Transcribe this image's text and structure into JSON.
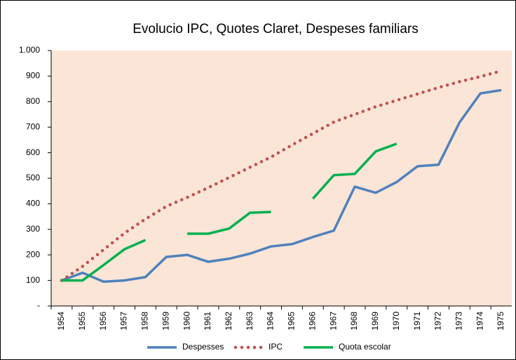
{
  "chart_data": {
    "type": "line",
    "title": "Evolucio IPC, Quotes Claret, Despeses familiars",
    "categories": [
      "1954",
      "1955",
      "1956",
      "1957",
      "1958",
      "1959",
      "1960",
      "1961",
      "1962",
      "1963",
      "1964",
      "1965",
      "1966",
      "1967",
      "1968",
      "1969",
      "1970",
      "1971",
      "1972",
      "1973",
      "1974",
      "1975"
    ],
    "series": [
      {
        "name": "Despesses",
        "color": "#4f81bd",
        "style": "solid",
        "values": [
          100,
          130,
          95,
          100,
          113,
          192,
          200,
          173,
          185,
          205,
          233,
          242,
          270,
          295,
          467,
          443,
          485,
          547,
          553,
          718,
          832,
          845
        ]
      },
      {
        "name": "IPC",
        "color": "#c0504d",
        "style": "dotted",
        "values": [
          100,
          155,
          220,
          285,
          340,
          390,
          425,
          463,
          503,
          543,
          583,
          630,
          675,
          720,
          750,
          780,
          805,
          830,
          855,
          878,
          898,
          920
        ]
      },
      {
        "name": "Quota escolar",
        "color": "#00b050",
        "style": "solid",
        "values": [
          100,
          100,
          160,
          222,
          258,
          null,
          283,
          283,
          303,
          365,
          368,
          null,
          420,
          512,
          517,
          605,
          635,
          null,
          null,
          null,
          null,
          null
        ]
      }
    ],
    "ylim": [
      0,
      1000
    ],
    "yticks": [
      {
        "value": 0,
        "label": "-"
      },
      100,
      200,
      300,
      400,
      500,
      600,
      700,
      800,
      900,
      {
        "value": 1000,
        "label": "1.000"
      }
    ],
    "plot_background": "#fbe5d6",
    "legend": "bottom"
  }
}
